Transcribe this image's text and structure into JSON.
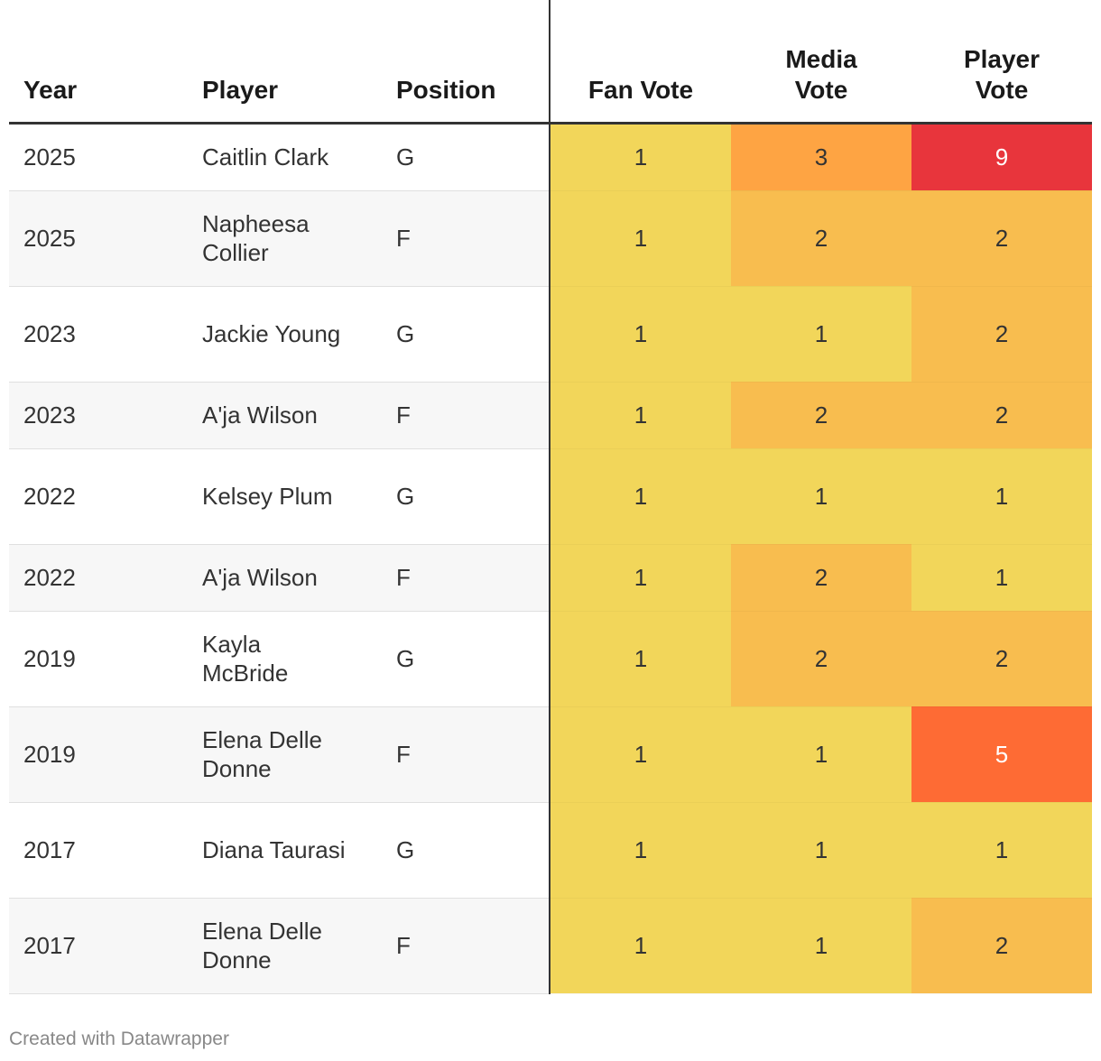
{
  "chart_data": {
    "type": "table",
    "columns": [
      "Year",
      "Player",
      "Position",
      "Fan Vote",
      "Media Vote",
      "Player Vote"
    ],
    "rows": [
      {
        "year": "2025",
        "player": "Caitlin Clark",
        "position": "G",
        "fan": 1,
        "media": 3,
        "playerVote": 9
      },
      {
        "year": "2025",
        "player": "Napheesa Collier",
        "position": "F",
        "fan": 1,
        "media": 2,
        "playerVote": 2
      },
      {
        "year": "2023",
        "player": "Jackie Young",
        "position": "G",
        "fan": 1,
        "media": 1,
        "playerVote": 2
      },
      {
        "year": "2023",
        "player": "A'ja Wilson",
        "position": "F",
        "fan": 1,
        "media": 2,
        "playerVote": 2
      },
      {
        "year": "2022",
        "player": "Kelsey Plum",
        "position": "G",
        "fan": 1,
        "media": 1,
        "playerVote": 1
      },
      {
        "year": "2022",
        "player": "A'ja Wilson",
        "position": "F",
        "fan": 1,
        "media": 2,
        "playerVote": 1
      },
      {
        "year": "2019",
        "player": "Kayla McBride",
        "position": "G",
        "fan": 1,
        "media": 2,
        "playerVote": 2
      },
      {
        "year": "2019",
        "player": "Elena Delle Donne",
        "position": "F",
        "fan": 1,
        "media": 1,
        "playerVote": 5
      },
      {
        "year": "2017",
        "player": "Diana Taurasi",
        "position": "G",
        "fan": 1,
        "media": 1,
        "playerVote": 1
      },
      {
        "year": "2017",
        "player": "Elena Delle Donne",
        "position": "F",
        "fan": 1,
        "media": 1,
        "playerVote": 2
      }
    ],
    "heat_colors": {
      "1": "#f2d65a",
      "2": "#f8bd4f",
      "3": "#fea443",
      "5": "#fe6b34",
      "9": "#e8353c"
    }
  },
  "headers": {
    "year": "Year",
    "player": "Player",
    "position": "Position",
    "fan": "Fan Vote",
    "media": "Media Vote",
    "playerVote": "Player Vote"
  },
  "footer": {
    "credit": "Created with Datawrapper"
  }
}
